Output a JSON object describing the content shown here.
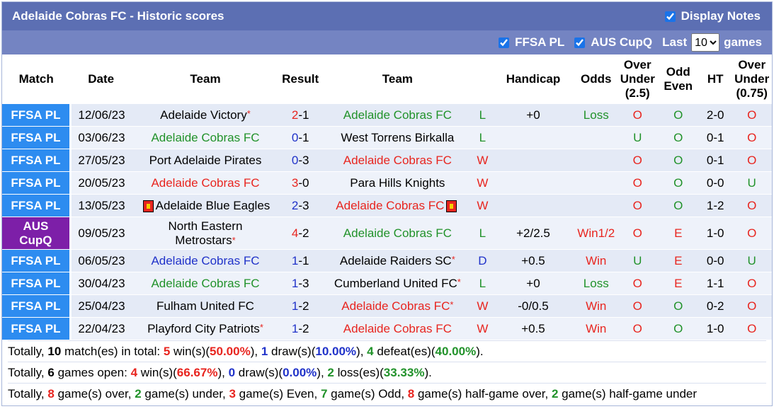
{
  "header": {
    "title": "Adelaide Cobras FC - Historic scores",
    "display_notes_label": "Display Notes",
    "filter_ffsa": "FFSA PL",
    "filter_aus": "AUS CupQ",
    "last_label": "Last",
    "last_value": "10",
    "games_label": "games"
  },
  "columns": [
    "Match",
    "Date",
    "Team",
    "Result",
    "Team",
    "",
    "Handicap",
    "Odds",
    "Over Under (2.5)",
    "Odd Even",
    "HT",
    "Over Under (0.75)"
  ],
  "rows": [
    {
      "league": "FFSA PL",
      "date": "12/06/23",
      "home": "Adelaide Victory",
      "home_star": "*",
      "home_color": "black",
      "score_h": "2",
      "score_a": "1",
      "score_color": "red",
      "away": "Adelaide Cobras FC",
      "away_star": "",
      "away_color": "green",
      "wl": "L",
      "wl_color": "green",
      "handicap": "+0",
      "odds": "Loss",
      "odds_color": "green",
      "ou": "O",
      "ou_color": "red",
      "oe": "O",
      "oe_color": "green",
      "ht": "2-0",
      "ou2": "O",
      "ou2_color": "red"
    },
    {
      "league": "FFSA PL",
      "date": "03/06/23",
      "home": "Adelaide Cobras FC",
      "home_star": "",
      "home_color": "green",
      "score_h": "0",
      "score_a": "1",
      "score_color": "blue",
      "away": "West Torrens Birkalla",
      "away_star": "",
      "away_color": "black",
      "wl": "L",
      "wl_color": "green",
      "handicap": "",
      "odds": "",
      "odds_color": "black",
      "ou": "U",
      "ou_color": "green",
      "oe": "O",
      "oe_color": "green",
      "ht": "0-1",
      "ou2": "O",
      "ou2_color": "red"
    },
    {
      "league": "FFSA PL",
      "date": "27/05/23",
      "home": "Port Adelaide Pirates",
      "home_star": "",
      "home_color": "black",
      "score_h": "0",
      "score_a": "3",
      "score_color": "blue",
      "away": "Adelaide Cobras FC",
      "away_star": "",
      "away_color": "red",
      "wl": "W",
      "wl_color": "red",
      "handicap": "",
      "odds": "",
      "odds_color": "black",
      "ou": "O",
      "ou_color": "red",
      "oe": "O",
      "oe_color": "green",
      "ht": "0-1",
      "ou2": "O",
      "ou2_color": "red"
    },
    {
      "league": "FFSA PL",
      "date": "20/05/23",
      "home": "Adelaide Cobras FC",
      "home_star": "",
      "home_color": "red",
      "score_h": "3",
      "score_a": "0",
      "score_color": "red",
      "away": "Para Hills Knights",
      "away_star": "",
      "away_color": "black",
      "wl": "W",
      "wl_color": "red",
      "handicap": "",
      "odds": "",
      "odds_color": "black",
      "ou": "O",
      "ou_color": "red",
      "oe": "O",
      "oe_color": "green",
      "ht": "0-0",
      "ou2": "U",
      "ou2_color": "green"
    },
    {
      "league": "FFSA PL",
      "date": "13/05/23",
      "home": "Adelaide Blue Eagles",
      "home_star": "",
      "home_color": "black",
      "home_card": true,
      "score_h": "2",
      "score_a": "3",
      "score_color": "blue",
      "away": "Adelaide Cobras FC",
      "away_star": "",
      "away_color": "red",
      "away_card": true,
      "wl": "W",
      "wl_color": "red",
      "handicap": "",
      "odds": "",
      "odds_color": "black",
      "ou": "O",
      "ou_color": "red",
      "oe": "O",
      "oe_color": "green",
      "ht": "1-2",
      "ou2": "O",
      "ou2_color": "red"
    },
    {
      "league": "AUS CupQ",
      "league_cup": true,
      "date": "09/05/23",
      "home": "North Eastern Metrostars",
      "home_star": "*",
      "home_color": "black",
      "score_h": "4",
      "score_a": "2",
      "score_color": "red",
      "away": "Adelaide Cobras FC",
      "away_star": "",
      "away_color": "green",
      "wl": "L",
      "wl_color": "green",
      "handicap": "+2/2.5",
      "odds": "Win1/2",
      "odds_color": "red",
      "ou": "O",
      "ou_color": "red",
      "oe": "E",
      "oe_color": "red",
      "ht": "1-0",
      "ou2": "O",
      "ou2_color": "red"
    },
    {
      "league": "FFSA PL",
      "date": "06/05/23",
      "home": "Adelaide Cobras FC",
      "home_star": "",
      "home_color": "blue",
      "score_h": "1",
      "score_a": "1",
      "score_color": "blue",
      "away": "Adelaide Raiders SC",
      "away_star": "*",
      "away_color": "black",
      "wl": "D",
      "wl_color": "blue",
      "handicap": "+0.5",
      "odds": "Win",
      "odds_color": "red",
      "ou": "U",
      "ou_color": "green",
      "oe": "E",
      "oe_color": "red",
      "ht": "0-0",
      "ou2": "U",
      "ou2_color": "green"
    },
    {
      "league": "FFSA PL",
      "date": "30/04/23",
      "home": "Adelaide Cobras FC",
      "home_star": "",
      "home_color": "green",
      "score_h": "1",
      "score_a": "3",
      "score_color": "blue",
      "away": "Cumberland United FC",
      "away_star": "*",
      "away_color": "black",
      "wl": "L",
      "wl_color": "green",
      "handicap": "+0",
      "odds": "Loss",
      "odds_color": "green",
      "ou": "O",
      "ou_color": "red",
      "oe": "E",
      "oe_color": "red",
      "ht": "1-1",
      "ou2": "O",
      "ou2_color": "red"
    },
    {
      "league": "FFSA PL",
      "date": "25/04/23",
      "home": "Fulham United FC",
      "home_star": "",
      "home_color": "black",
      "score_h": "1",
      "score_a": "2",
      "score_color": "blue",
      "away": "Adelaide Cobras FC",
      "away_star": "*",
      "away_color": "red",
      "wl": "W",
      "wl_color": "red",
      "handicap": "-0/0.5",
      "odds": "Win",
      "odds_color": "red",
      "ou": "O",
      "ou_color": "red",
      "oe": "O",
      "oe_color": "green",
      "ht": "0-2",
      "ou2": "O",
      "ou2_color": "red"
    },
    {
      "league": "FFSA PL",
      "date": "22/04/23",
      "home": "Playford City Patriots",
      "home_star": "*",
      "home_color": "black",
      "score_h": "1",
      "score_a": "2",
      "score_color": "blue",
      "away": "Adelaide Cobras FC",
      "away_star": "",
      "away_color": "red",
      "wl": "W",
      "wl_color": "red",
      "handicap": "+0.5",
      "odds": "Win",
      "odds_color": "red",
      "ou": "O",
      "ou_color": "red",
      "oe": "O",
      "oe_color": "green",
      "ht": "1-0",
      "ou2": "O",
      "ou2_color": "red"
    }
  ],
  "totals": {
    "line1": {
      "p0": "Totally, ",
      "matches": "10",
      "p1": " match(es) in total: ",
      "wins": "5",
      "p2": " win(s)(",
      "win_pct": "50.00%",
      "p3": "), ",
      "draws": "1",
      "p4": " draw(s)(",
      "draw_pct": "10.00%",
      "p5": "), ",
      "defeats": "4",
      "p6": " defeat(es)(",
      "defeat_pct": "40.00%",
      "p7": ")."
    },
    "line2": {
      "p0": "Totally, ",
      "open": "6",
      "p1": " games open: ",
      "wins": "4",
      "p2": " win(s)(",
      "win_pct": "66.67%",
      "p3": "), ",
      "draws": "0",
      "p4": " draw(s)(",
      "draw_pct": "0.00%",
      "p5": "), ",
      "losses": "2",
      "p6": " loss(es)(",
      "loss_pct": "33.33%",
      "p7": ")."
    },
    "line3": {
      "p0": "Totally, ",
      "over": "8",
      "p1": " game(s) over, ",
      "under": "2",
      "p2": " game(s) under, ",
      "even": "3",
      "p3": " game(s) Even, ",
      "odd": "7",
      "p4": " game(s) Odd, ",
      "hg_over": "8",
      "p5": " game(s) half-game over, ",
      "hg_under": "2",
      "p6": " game(s) half-game under"
    }
  }
}
